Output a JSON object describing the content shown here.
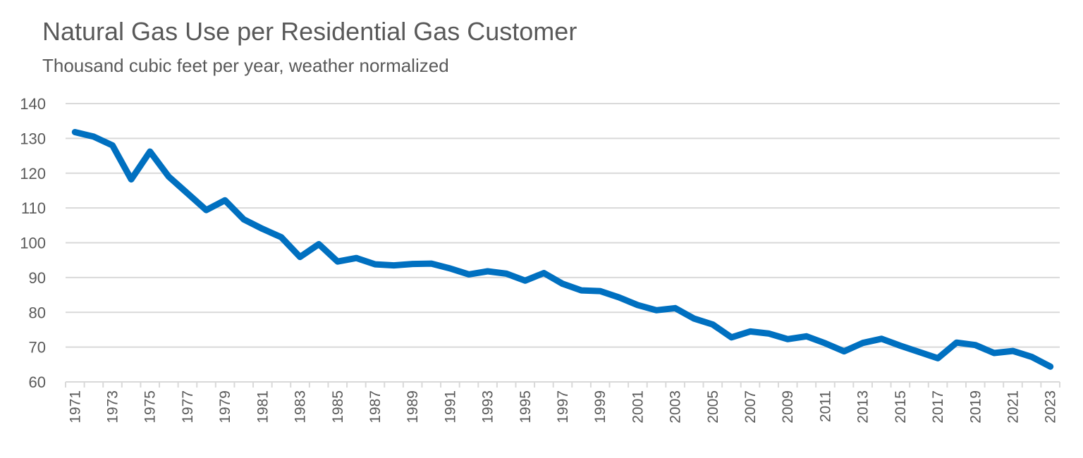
{
  "chart_data": {
    "type": "line",
    "title": "Natural Gas Use per Residential Gas Customer",
    "subtitle": "Thousand cubic feet per year, weather normalized",
    "xlabel": "",
    "ylabel": "",
    "ylim": [
      60,
      140
    ],
    "yticks": [
      60,
      70,
      80,
      90,
      100,
      110,
      120,
      130,
      140
    ],
    "grid": true,
    "line_color": "#0070c0",
    "grid_color": "#d9d9d9",
    "x": [
      1971,
      1972,
      1973,
      1974,
      1975,
      1976,
      1977,
      1978,
      1979,
      1980,
      1981,
      1982,
      1983,
      1984,
      1985,
      1986,
      1987,
      1988,
      1989,
      1990,
      1991,
      1992,
      1993,
      1994,
      1995,
      1996,
      1997,
      1998,
      1999,
      2000,
      2001,
      2002,
      2003,
      2004,
      2005,
      2006,
      2007,
      2008,
      2009,
      2010,
      2011,
      2012,
      2013,
      2014,
      2015,
      2016,
      2017,
      2018,
      2019,
      2020,
      2021,
      2022,
      2023
    ],
    "values": [
      131.8,
      130.5,
      128.0,
      118.2,
      126.2,
      119.0,
      114.2,
      109.4,
      112.2,
      106.7,
      104.0,
      101.6,
      95.9,
      99.6,
      94.6,
      95.6,
      93.8,
      93.5,
      93.9,
      94.0,
      92.6,
      90.9,
      91.8,
      91.1,
      89.1,
      91.3,
      88.2,
      86.3,
      86.1,
      84.3,
      82.1,
      80.6,
      81.2,
      78.2,
      76.5,
      72.8,
      74.5,
      73.9,
      72.3,
      73.1,
      71.1,
      68.8,
      71.2,
      72.4,
      70.4,
      68.6,
      66.8,
      71.3,
      70.6,
      68.3,
      68.9,
      67.2,
      64.4
    ],
    "xtick_labels": [
      "1971",
      "1973",
      "1975",
      "1977",
      "1979",
      "1981",
      "1983",
      "1985",
      "1987",
      "1989",
      "1991",
      "1993",
      "1995",
      "1997",
      "1999",
      "2001",
      "2003",
      "2005",
      "2007",
      "2009",
      "2011",
      "2013",
      "2015",
      "2017",
      "2019",
      "2021",
      "2023"
    ]
  }
}
